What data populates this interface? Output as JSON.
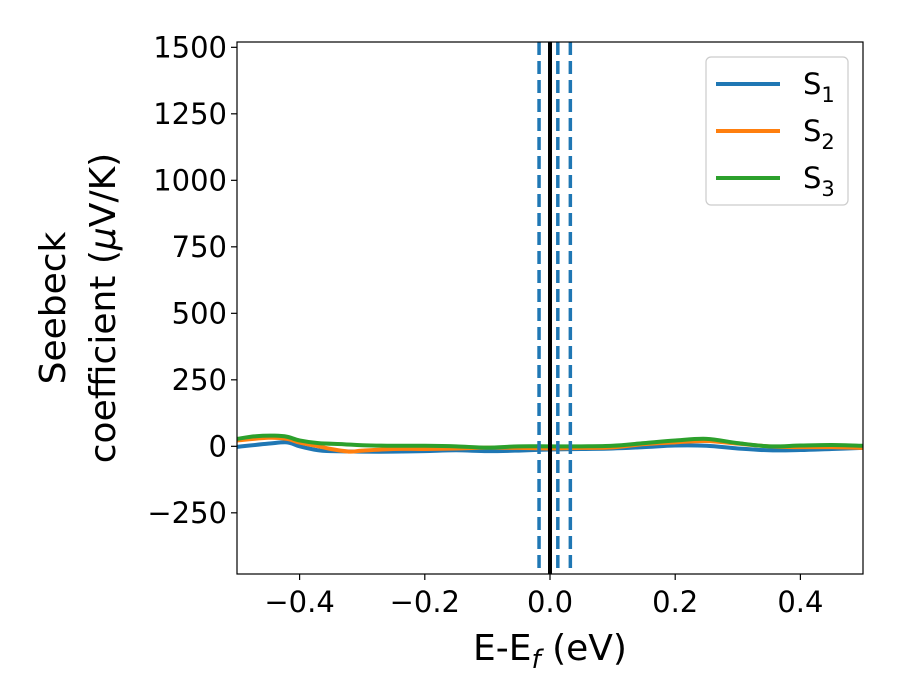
{
  "chart_data": {
    "type": "line",
    "xlabel": "E-E",
    "xlabel_sub": "f",
    "xlabel_unit": " (eV)",
    "ylabel_line1": "Seebeck",
    "ylabel_line2": "coefficient  (",
    "ylabel_mu": "μ",
    "ylabel_unit": "V/K)",
    "xlim": [
      -0.5,
      0.5
    ],
    "ylim": [
      -480,
      1520
    ],
    "xticks": [
      -0.4,
      -0.2,
      0.0,
      0.2,
      0.4
    ],
    "xtick_labels": [
      "−0.4",
      "−0.2",
      "0.0",
      "0.2",
      "0.4"
    ],
    "yticks": [
      -250,
      0,
      250,
      500,
      750,
      1000,
      1250,
      1500
    ],
    "ytick_labels": [
      "−250",
      "0",
      "250",
      "500",
      "750",
      "1000",
      "1250",
      "1500"
    ],
    "grid": false,
    "legend_position": "top-right",
    "series": [
      {
        "name": "S",
        "subscript": "1",
        "color": "#1f77b4",
        "x": [
          -0.5,
          -0.45,
          -0.42,
          -0.4,
          -0.37,
          -0.35,
          -0.3,
          -0.25,
          -0.2,
          -0.15,
          -0.1,
          -0.05,
          0.0,
          0.05,
          0.1,
          0.15,
          0.2,
          0.25,
          0.3,
          0.35,
          0.4,
          0.45,
          0.5
        ],
        "y": [
          -2,
          10,
          15,
          0,
          -15,
          -18,
          -20,
          -20,
          -18,
          -15,
          -18,
          -16,
          -12,
          -10,
          -8,
          -3,
          3,
          2,
          -8,
          -15,
          -14,
          -10,
          -6
        ]
      },
      {
        "name": "S",
        "subscript": "2",
        "color": "#ff7f0e",
        "x": [
          -0.5,
          -0.45,
          -0.42,
          -0.4,
          -0.37,
          -0.35,
          -0.32,
          -0.3,
          -0.25,
          -0.2,
          -0.15,
          -0.1,
          -0.05,
          0.0,
          0.05,
          0.1,
          0.15,
          0.2,
          0.25,
          0.3,
          0.35,
          0.4,
          0.45,
          0.5
        ],
        "y": [
          22,
          32,
          28,
          14,
          0,
          -10,
          -20,
          -16,
          -10,
          -10,
          -8,
          -5,
          -6,
          -8,
          -6,
          -4,
          8,
          15,
          20,
          10,
          0,
          -3,
          -3,
          -6
        ]
      },
      {
        "name": "S",
        "subscript": "3",
        "color": "#2ca02c",
        "x": [
          -0.5,
          -0.47,
          -0.44,
          -0.42,
          -0.4,
          -0.37,
          -0.33,
          -0.3,
          -0.25,
          -0.2,
          -0.15,
          -0.1,
          -0.05,
          0.0,
          0.05,
          0.1,
          0.15,
          0.2,
          0.25,
          0.3,
          0.35,
          0.4,
          0.45,
          0.5
        ],
        "y": [
          28,
          38,
          40,
          36,
          22,
          12,
          8,
          4,
          2,
          2,
          0,
          -5,
          0,
          0,
          0,
          2,
          12,
          22,
          28,
          12,
          0,
          3,
          5,
          2
        ]
      }
    ],
    "vertical_lines": [
      {
        "x": 0.0,
        "style": "solid",
        "color": "#000000"
      },
      {
        "x": -0.0175,
        "style": "dashed",
        "color": "#1f77b4"
      },
      {
        "x": 0.0125,
        "style": "dashed",
        "color": "#1f77b4"
      },
      {
        "x": 0.0325,
        "style": "dashed",
        "color": "#1f77b4"
      }
    ]
  }
}
